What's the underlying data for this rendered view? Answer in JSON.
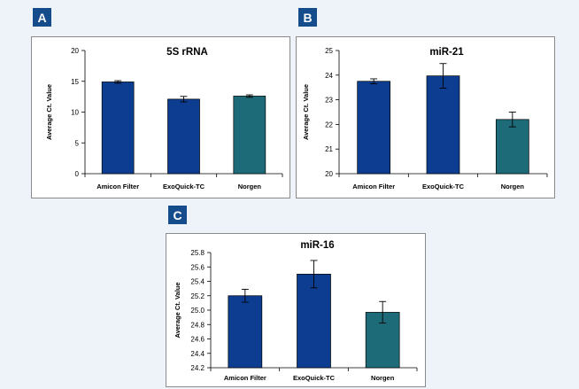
{
  "panels": [
    {
      "letter": "A"
    },
    {
      "letter": "B"
    },
    {
      "letter": "C"
    }
  ],
  "chart_data": [
    {
      "type": "bar",
      "title": "5S rRNA",
      "ylabel": "Average Ct. Value",
      "xlabel": "",
      "categories": [
        "Amicon Filter",
        "ExoQuick-TC",
        "Norgen"
      ],
      "values": [
        14.9,
        12.1,
        12.6
      ],
      "errors": [
        0.2,
        0.45,
        0.2
      ],
      "colors": [
        "#0d3d91",
        "#0d3d91",
        "#1d6b78"
      ],
      "ylim": [
        0,
        20
      ],
      "yticks": [
        0,
        5,
        10,
        15,
        20
      ],
      "ytick_labels": [
        "0",
        "5",
        "10",
        "15",
        "20"
      ],
      "grid": false
    },
    {
      "type": "bar",
      "title": "miR-21",
      "ylabel": "Average Ct. Value",
      "xlabel": "",
      "categories": [
        "Amicon Filter",
        "ExoQuick-TC",
        "Norgen"
      ],
      "values": [
        23.75,
        23.97,
        22.2
      ],
      "errors": [
        0.1,
        0.5,
        0.3
      ],
      "colors": [
        "#0d3d91",
        "#0d3d91",
        "#1d6b78"
      ],
      "ylim": [
        20,
        25
      ],
      "yticks": [
        20,
        21,
        22,
        23,
        24,
        25
      ],
      "ytick_labels": [
        "20",
        "21",
        "22",
        "23",
        "24",
        "25"
      ],
      "grid": false
    },
    {
      "type": "bar",
      "title": "miR-16",
      "ylabel": "Average Ct. Value",
      "xlabel": "",
      "categories": [
        "Amicon Filter",
        "ExoQuick-TC",
        "Norgen"
      ],
      "values": [
        25.2,
        25.5,
        24.97
      ],
      "errors": [
        0.09,
        0.19,
        0.15
      ],
      "colors": [
        "#0d3d91",
        "#0d3d91",
        "#1d6b78"
      ],
      "ylim": [
        24.2,
        25.8
      ],
      "yticks": [
        24.2,
        24.4,
        24.6,
        24.8,
        25.0,
        25.2,
        25.4,
        25.6,
        25.8
      ],
      "ytick_labels": [
        "24.2",
        "24.4",
        "24.6",
        "24.8",
        "25.0",
        "25.2",
        "25.4",
        "25.6",
        "25.8"
      ],
      "grid": false
    }
  ]
}
